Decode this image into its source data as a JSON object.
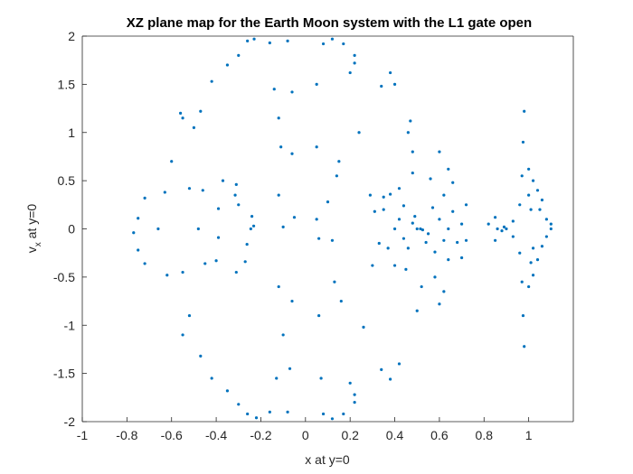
{
  "chart_data": {
    "type": "scatter",
    "title": "XZ plane map for the Earth Moon system with the L1 gate open",
    "xlabel": "x at y=0",
    "ylabel_main": "v",
    "ylabel_sub": "x",
    "ylabel_rest": " at y=0",
    "xlim": [
      -1,
      1.2
    ],
    "ylim": [
      -2,
      2
    ],
    "xticks": [
      -1,
      -0.8,
      -0.6,
      -0.4,
      -0.2,
      0,
      0.2,
      0.4,
      0.6,
      0.8,
      1
    ],
    "xtick_labels": [
      "-1",
      "-0.8",
      "-0.6",
      "-0.4",
      "-0.2",
      "0",
      "0.2",
      "0.4",
      "0.6",
      "0.8",
      "1"
    ],
    "yticks": [
      -2,
      -1.5,
      -1,
      -0.5,
      0,
      0.5,
      1,
      1.5,
      2
    ],
    "ytick_labels": [
      "-2",
      "-1.5",
      "-1",
      "-0.5",
      "0",
      "0.5",
      "1",
      "1.5",
      "2"
    ],
    "grid": false,
    "marker_color": "#0072BD",
    "series": [
      {
        "points": [
          [
            -0.245,
            0.0
          ],
          [
            -0.232,
            0.03
          ],
          [
            -0.262,
            -0.16
          ],
          [
            -0.31,
            0.46
          ],
          [
            -0.315,
            0.35
          ],
          [
            -0.3,
            0.25
          ],
          [
            -0.24,
            0.13
          ],
          [
            -0.27,
            -0.34
          ],
          [
            -0.31,
            -0.45
          ],
          [
            -0.37,
            0.5
          ],
          [
            -0.39,
            0.21
          ],
          [
            -0.39,
            -0.09
          ],
          [
            -0.4,
            -0.33
          ],
          [
            -0.46,
            0.4
          ],
          [
            -0.45,
            -0.36
          ],
          [
            -0.5,
            1.05
          ],
          [
            -0.6,
            0.7
          ],
          [
            -0.63,
            0.38
          ],
          [
            -0.66,
            0.0
          ],
          [
            -0.62,
            -0.48
          ],
          [
            -0.52,
            -0.9
          ],
          [
            -0.56,
            1.2
          ],
          [
            -0.52,
            0.42
          ],
          [
            -0.48,
            0.0
          ],
          [
            -0.55,
            -0.45
          ],
          [
            -0.72,
            0.32
          ],
          [
            -0.75,
            0.11
          ],
          [
            -0.77,
            -0.04
          ],
          [
            -0.75,
            -0.22
          ],
          [
            -0.72,
            -0.36
          ],
          [
            -0.55,
            1.15
          ],
          [
            -0.47,
            1.22
          ],
          [
            -0.42,
            1.53
          ],
          [
            -0.35,
            1.7
          ],
          [
            -0.3,
            1.8
          ],
          [
            -0.55,
            -1.1
          ],
          [
            -0.47,
            -1.32
          ],
          [
            -0.42,
            -1.55
          ],
          [
            -0.35,
            -1.68
          ],
          [
            -0.3,
            -1.82
          ],
          [
            -0.26,
            1.95
          ],
          [
            -0.23,
            1.97
          ],
          [
            -0.16,
            1.93
          ],
          [
            -0.26,
            -1.92
          ],
          [
            -0.22,
            -1.96
          ],
          [
            -0.16,
            -1.9
          ],
          [
            -0.14,
            1.45
          ],
          [
            -0.12,
            1.15
          ],
          [
            -0.11,
            0.85
          ],
          [
            -0.12,
            0.35
          ],
          [
            -0.1,
            0.02
          ],
          [
            -0.12,
            -0.6
          ],
          [
            -0.1,
            -1.1
          ],
          [
            -0.13,
            -1.55
          ],
          [
            -0.08,
            1.95
          ],
          [
            -0.06,
            1.42
          ],
          [
            -0.06,
            0.78
          ],
          [
            -0.05,
            0.12
          ],
          [
            -0.06,
            -0.75
          ],
          [
            -0.07,
            -1.45
          ],
          [
            -0.08,
            -1.9
          ],
          [
            0.05,
            0.1
          ],
          [
            0.06,
            -0.1
          ],
          [
            0.05,
            0.85
          ],
          [
            0.06,
            -0.9
          ],
          [
            0.05,
            1.5
          ],
          [
            0.07,
            -1.55
          ],
          [
            0.08,
            1.92
          ],
          [
            0.12,
            1.97
          ],
          [
            0.17,
            1.92
          ],
          [
            0.22,
            1.8
          ],
          [
            0.08,
            -1.92
          ],
          [
            0.12,
            -1.97
          ],
          [
            0.17,
            -1.92
          ],
          [
            0.22,
            -1.8
          ],
          [
            0.1,
            0.28
          ],
          [
            0.12,
            -0.12
          ],
          [
            0.14,
            0.55
          ],
          [
            0.13,
            -0.55
          ],
          [
            0.15,
            0.7
          ],
          [
            0.16,
            -0.75
          ],
          [
            0.2,
            1.62
          ],
          [
            0.22,
            1.72
          ],
          [
            0.2,
            -1.6
          ],
          [
            0.22,
            -1.72
          ],
          [
            0.24,
            1.0
          ],
          [
            0.26,
            -1.02
          ],
          [
            0.29,
            0.35
          ],
          [
            0.3,
            -0.38
          ],
          [
            0.34,
            1.48
          ],
          [
            0.38,
            1.62
          ],
          [
            0.4,
            1.5
          ],
          [
            0.34,
            -1.46
          ],
          [
            0.38,
            -1.56
          ],
          [
            0.42,
            -1.4
          ],
          [
            0.31,
            0.18
          ],
          [
            0.33,
            -0.15
          ],
          [
            0.35,
            0.33
          ],
          [
            0.37,
            -0.2
          ],
          [
            0.35,
            0.2
          ],
          [
            0.38,
            0.36
          ],
          [
            0.4,
            -0.38
          ],
          [
            0.42,
            0.42
          ],
          [
            0.45,
            -0.42
          ],
          [
            0.48,
            0.58
          ],
          [
            0.52,
            -0.6
          ],
          [
            0.56,
            0.52
          ],
          [
            0.58,
            -0.5
          ],
          [
            0.62,
            0.35
          ],
          [
            0.64,
            -0.32
          ],
          [
            0.66,
            0.18
          ],
          [
            0.68,
            -0.14
          ],
          [
            0.7,
            0.05
          ],
          [
            0.4,
            0.0
          ],
          [
            0.42,
            0.1
          ],
          [
            0.44,
            -0.1
          ],
          [
            0.6,
            0.1
          ],
          [
            0.62,
            -0.12
          ],
          [
            0.64,
            0.0
          ],
          [
            0.48,
            0.8
          ],
          [
            0.5,
            -0.85
          ],
          [
            0.46,
            1.0
          ],
          [
            0.47,
            1.12
          ],
          [
            0.6,
            0.8
          ],
          [
            0.6,
            -0.78
          ],
          [
            0.64,
            0.62
          ],
          [
            0.62,
            -0.65
          ],
          [
            0.66,
            0.48
          ],
          [
            0.7,
            -0.3
          ],
          [
            0.72,
            0.25
          ],
          [
            0.72,
            -0.12
          ],
          [
            0.5,
            0.0
          ],
          [
            0.515,
            0.0
          ],
          [
            0.525,
            -0.01
          ],
          [
            0.48,
            0.06
          ],
          [
            0.55,
            -0.05
          ],
          [
            0.49,
            0.13
          ],
          [
            0.54,
            -0.14
          ],
          [
            0.44,
            0.24
          ],
          [
            0.58,
            -0.24
          ],
          [
            0.46,
            -0.2
          ],
          [
            0.57,
            0.22
          ],
          [
            0.85,
            0.12
          ],
          [
            0.86,
            0.0
          ],
          [
            0.85,
            -0.12
          ],
          [
            0.82,
            0.05
          ],
          [
            0.98,
            1.22
          ],
          [
            0.975,
            0.9
          ],
          [
            0.97,
            0.55
          ],
          [
            0.96,
            0.25
          ],
          [
            0.93,
            0.08
          ],
          [
            0.9,
            0.0
          ],
          [
            0.93,
            -0.08
          ],
          [
            0.96,
            -0.25
          ],
          [
            0.97,
            -0.55
          ],
          [
            0.975,
            -0.9
          ],
          [
            0.98,
            -1.22
          ],
          [
            1.0,
            0.62
          ],
          [
            1.02,
            0.5
          ],
          [
            1.04,
            0.4
          ],
          [
            1.06,
            0.3
          ],
          [
            1.05,
            0.2
          ],
          [
            1.08,
            0.1
          ],
          [
            1.1,
            0.05
          ],
          [
            1.1,
            0.0
          ],
          [
            1.08,
            -0.08
          ],
          [
            1.06,
            -0.18
          ],
          [
            1.04,
            -0.32
          ],
          [
            1.02,
            -0.48
          ],
          [
            1.0,
            -0.6
          ],
          [
            1.0,
            0.35
          ],
          [
            1.01,
            0.2
          ],
          [
            1.02,
            -0.2
          ],
          [
            1.01,
            -0.35
          ],
          [
            0.89,
            0.02
          ],
          [
            0.88,
            -0.02
          ]
        ]
      }
    ]
  }
}
